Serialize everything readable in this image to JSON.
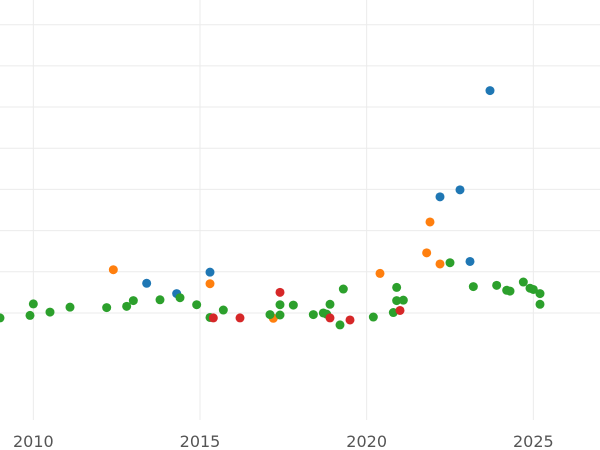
{
  "chart_data": {
    "type": "scatter",
    "title": "",
    "xlabel": "",
    "ylabel": "",
    "xlim": [
      2009.0,
      2027.0
    ],
    "ylim": [
      -3.6,
      6.6
    ],
    "x_ticks": [
      2010,
      2015,
      2020,
      2025
    ],
    "x_tick_labels": [
      "2010",
      "2015",
      "2020",
      "2025"
    ],
    "y_gridlines": [
      -1,
      0,
      1,
      2,
      3,
      4,
      5,
      6
    ],
    "grid": true,
    "legend": "none",
    "colors": {
      "blue": "#1f77b4",
      "orange": "#ff7f0e",
      "green": "#2ca02c",
      "red": "#d62728"
    },
    "series": [
      {
        "color": "blue",
        "points": [
          [
            2013.4,
            -0.28
          ],
          [
            2014.3,
            -0.53
          ],
          [
            2015.3,
            -0.01
          ],
          [
            2022.2,
            1.82
          ],
          [
            2022.8,
            1.99
          ],
          [
            2023.1,
            0.25
          ],
          [
            2023.7,
            4.4
          ]
        ]
      },
      {
        "color": "orange",
        "points": [
          [
            2012.4,
            0.05
          ],
          [
            2015.3,
            -0.29
          ],
          [
            2017.2,
            -1.13
          ],
          [
            2020.4,
            -0.04
          ],
          [
            2021.8,
            0.46
          ],
          [
            2021.9,
            1.21
          ],
          [
            2022.2,
            0.19
          ]
        ]
      },
      {
        "color": "green",
        "points": [
          [
            2009.0,
            -1.12
          ],
          [
            2009.9,
            -1.06
          ],
          [
            2010.0,
            -0.78
          ],
          [
            2010.5,
            -0.98
          ],
          [
            2011.1,
            -0.86
          ],
          [
            2012.2,
            -0.87
          ],
          [
            2012.8,
            -0.84
          ],
          [
            2013.0,
            -0.7
          ],
          [
            2013.8,
            -0.68
          ],
          [
            2014.4,
            -0.63
          ],
          [
            2014.9,
            -0.8
          ],
          [
            2015.3,
            -1.11
          ],
          [
            2015.7,
            -0.93
          ],
          [
            2017.1,
            -1.04
          ],
          [
            2017.4,
            -1.05
          ],
          [
            2017.4,
            -0.8
          ],
          [
            2017.8,
            -0.81
          ],
          [
            2018.4,
            -1.04
          ],
          [
            2018.7,
            -1.0
          ],
          [
            2018.8,
            -1.03
          ],
          [
            2018.9,
            -0.79
          ],
          [
            2019.2,
            -1.29
          ],
          [
            2019.3,
            -0.42
          ],
          [
            2020.2,
            -1.1
          ],
          [
            2020.8,
            -0.99
          ],
          [
            2020.9,
            -0.7
          ],
          [
            2020.9,
            -0.38
          ],
          [
            2021.1,
            -0.69
          ],
          [
            2022.5,
            0.22
          ],
          [
            2023.2,
            -0.36
          ],
          [
            2023.9,
            -0.33
          ],
          [
            2024.2,
            -0.45
          ],
          [
            2024.3,
            -0.47
          ],
          [
            2024.7,
            -0.25
          ],
          [
            2024.9,
            -0.4
          ],
          [
            2025.0,
            -0.43
          ],
          [
            2025.2,
            -0.53
          ],
          [
            2025.2,
            -0.79
          ]
        ]
      },
      {
        "color": "red",
        "points": [
          [
            2015.4,
            -1.12
          ],
          [
            2016.2,
            -1.12
          ],
          [
            2017.4,
            -0.5
          ],
          [
            2018.9,
            -1.12
          ],
          [
            2019.5,
            -1.17
          ],
          [
            2021.0,
            -0.94
          ]
        ]
      }
    ]
  }
}
